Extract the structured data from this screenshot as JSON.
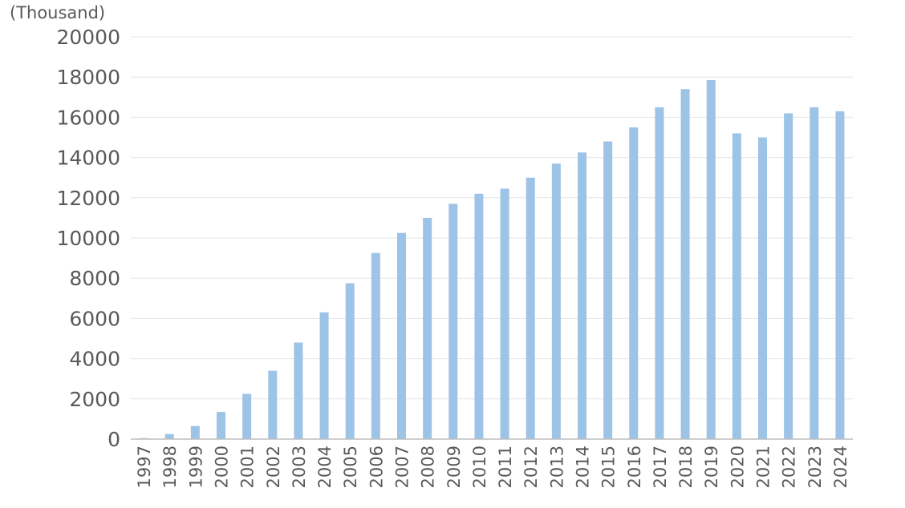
{
  "chart_data": {
    "type": "bar",
    "unit_label": "(Thousand)",
    "categories": [
      "1997",
      "1998",
      "1999",
      "2000",
      "2001",
      "2002",
      "2003",
      "2004",
      "2005",
      "2006",
      "2007",
      "2008",
      "2009",
      "2010",
      "2011",
      "2012",
      "2013",
      "2014",
      "2015",
      "2016",
      "2017",
      "2018",
      "2019",
      "2020",
      "2021",
      "2022",
      "2023",
      "2024"
    ],
    "series": [
      {
        "values": [
          50,
          250,
          650,
          1350,
          2250,
          3400,
          4800,
          6300,
          7750,
          9250,
          10250,
          11000,
          11700,
          12200,
          12450,
          13000,
          13700,
          14250,
          14800,
          15500,
          16500,
          17400,
          17850,
          15200,
          15000,
          16200,
          16500,
          16300
        ],
        "color": "#9dc3e6"
      }
    ],
    "yticks": [
      "0",
      "2000",
      "4000",
      "6000",
      "8000",
      "10000",
      "12000",
      "14000",
      "16000",
      "18000",
      "20000"
    ],
    "ylim": [
      0,
      20000
    ],
    "grid": true,
    "legend": false
  }
}
